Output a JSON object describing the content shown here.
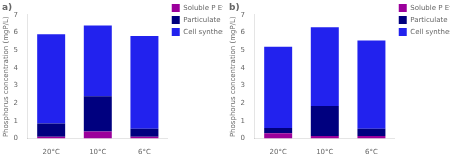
{
  "chart_data": [
    {
      "type": "bar",
      "title": "a)",
      "stacked": true,
      "grid": false,
      "legend": "upper right",
      "categories": [
        "20°C",
        "10°C",
        "6°C"
      ],
      "series": [
        {
          "name": "Soluble P Effluent",
          "color": "#9B009B",
          "values": [
            0.1,
            0.4,
            0.1
          ]
        },
        {
          "name": "Particulate P Effluent",
          "color": "#00007F",
          "values": [
            0.75,
            2.0,
            0.45
          ]
        },
        {
          "name": "Cell synthesis + Energy",
          "color": "#2222EE",
          "values": [
            5.05,
            4.0,
            5.25
          ]
        }
      ],
      "ylabel": "Phosphorus concentration (mgP/L)",
      "ylim": [
        0,
        7
      ],
      "yticks": [
        0,
        1,
        2,
        3,
        4,
        5,
        6,
        7
      ]
    },
    {
      "type": "bar",
      "title": "b)",
      "stacked": true,
      "grid": false,
      "legend": "upper right",
      "categories": [
        "20°C",
        "10°C",
        "6°C"
      ],
      "series": [
        {
          "name": "Soluble P Effluent",
          "color": "#9B009B",
          "values": [
            0.3,
            0.15,
            0.15
          ]
        },
        {
          "name": "Particulate P Effluent",
          "color": "#00007F",
          "values": [
            0.3,
            1.7,
            0.4
          ]
        },
        {
          "name": "Cell synthesis + Energy",
          "color": "#2222EE",
          "values": [
            4.6,
            4.45,
            5.0
          ]
        }
      ],
      "ylabel": "Phosphorus concentration (mgP/L)",
      "ylim": [
        0,
        7
      ],
      "yticks": [
        0,
        1,
        2,
        3,
        4,
        5,
        6,
        7
      ]
    }
  ]
}
